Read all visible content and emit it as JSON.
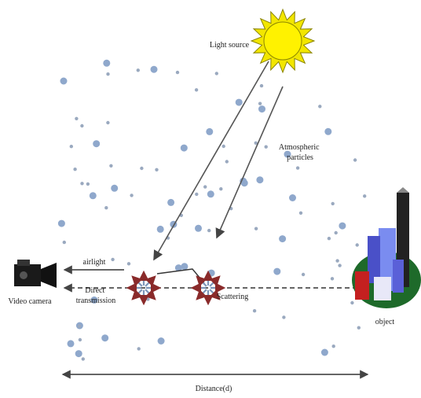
{
  "labels": {
    "light_source": "Light source",
    "atmospheric_particles": [
      "Atmospheric",
      "particles"
    ],
    "airlight": "airlight",
    "direct_transmission": [
      "Direct",
      "transmission"
    ],
    "scattering": "Scattering",
    "video_camera": "Video camera",
    "object": "object",
    "distance": "Distance(d)"
  }
}
